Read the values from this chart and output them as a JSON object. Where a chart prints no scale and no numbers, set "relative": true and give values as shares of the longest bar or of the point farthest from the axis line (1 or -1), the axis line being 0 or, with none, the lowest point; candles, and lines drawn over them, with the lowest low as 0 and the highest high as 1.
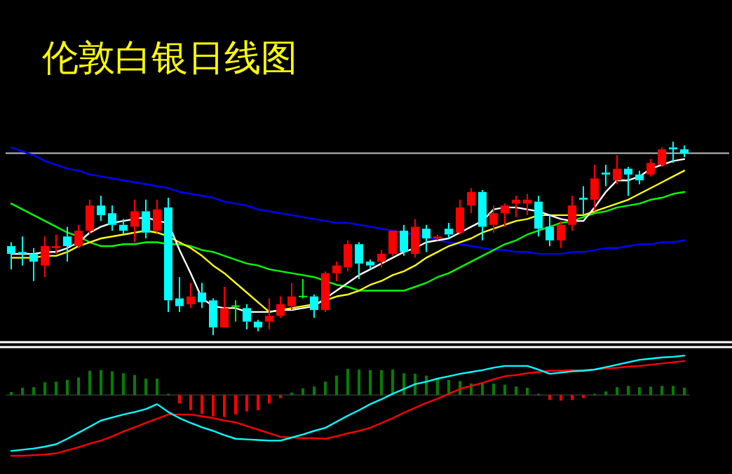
{
  "chart_data": [
    {
      "type": "candlestick",
      "title": "伦敦白银日线图",
      "relative": true,
      "categories": [
        null,
        null,
        null,
        null,
        null,
        null,
        null,
        null,
        null,
        null,
        null,
        null,
        null,
        null,
        null,
        null,
        null,
        null,
        null,
        null,
        null,
        null,
        null,
        null,
        null,
        null,
        null,
        null,
        null,
        null,
        null,
        null,
        null,
        null,
        null,
        null,
        null,
        null,
        null,
        null,
        null,
        null,
        null,
        null,
        null,
        null,
        null,
        null,
        null,
        null,
        null,
        null,
        null,
        null,
        null,
        null,
        null,
        null,
        null,
        null,
        null
      ],
      "ohlc": [
        [
          0.46,
          0.48,
          0.34,
          0.42
        ],
        [
          0.43,
          0.51,
          0.36,
          0.42
        ],
        [
          0.42,
          0.45,
          0.28,
          0.38
        ],
        [
          0.36,
          0.51,
          0.3,
          0.46
        ],
        [
          0.45,
          0.52,
          0.42,
          0.46
        ],
        [
          0.51,
          0.56,
          0.38,
          0.46
        ],
        [
          0.46,
          0.57,
          0.45,
          0.54
        ],
        [
          0.54,
          0.7,
          0.52,
          0.67
        ],
        [
          0.67,
          0.72,
          0.59,
          0.62
        ],
        [
          0.63,
          0.67,
          0.54,
          0.57
        ],
        [
          0.57,
          0.6,
          0.52,
          0.54
        ],
        [
          0.56,
          0.7,
          0.48,
          0.64
        ],
        [
          0.64,
          0.7,
          0.5,
          0.53
        ],
        [
          0.54,
          0.7,
          0.53,
          0.65
        ],
        [
          0.66,
          0.71,
          0.12,
          0.18
        ],
        [
          0.19,
          0.3,
          0.12,
          0.15
        ],
        [
          0.16,
          0.27,
          0.14,
          0.2
        ],
        [
          0.22,
          0.27,
          0.14,
          0.17
        ],
        [
          0.18,
          0.19,
          0,
          0.04
        ],
        [
          0.04,
          0.25,
          0.04,
          0.14
        ],
        [
          0.15,
          0.18,
          0.07,
          0.15
        ],
        [
          0.14,
          0.16,
          0.03,
          0.07
        ],
        [
          0.07,
          0.08,
          0.02,
          0.04
        ],
        [
          0.07,
          0.19,
          0.03,
          0.1
        ],
        [
          0.1,
          0.2,
          0.09,
          0.16
        ],
        [
          0.15,
          0.27,
          0.13,
          0.2
        ],
        [
          0.2,
          0.29,
          0.19,
          0.2
        ],
        [
          0.2,
          0.21,
          0.09,
          0.13
        ],
        [
          0.13,
          0.33,
          0.12,
          0.32
        ],
        [
          0.32,
          0.38,
          0.28,
          0.36
        ],
        [
          0.35,
          0.49,
          0.33,
          0.47
        ],
        [
          0.47,
          0.48,
          0.29,
          0.37
        ],
        [
          0.38,
          0.39,
          0.34,
          0.36
        ],
        [
          0.38,
          0.44,
          0.35,
          0.42
        ],
        [
          0.42,
          0.54,
          0.41,
          0.54
        ],
        [
          0.54,
          0.57,
          0.41,
          0.43
        ],
        [
          0.42,
          0.6,
          0.4,
          0.56
        ],
        [
          0.55,
          0.57,
          0.43,
          0.5
        ],
        [
          0.5,
          0.52,
          0.49,
          0.51
        ],
        [
          0.55,
          0.58,
          0.5,
          0.52
        ],
        [
          0.53,
          0.7,
          0.52,
          0.66
        ],
        [
          0.67,
          0.76,
          0.63,
          0.74
        ],
        [
          0.74,
          0.75,
          0.49,
          0.56
        ],
        [
          0.57,
          0.67,
          0.53,
          0.63
        ],
        [
          0.63,
          0.68,
          0.56,
          0.67
        ],
        [
          0.68,
          0.72,
          0.61,
          0.7
        ],
        [
          0.68,
          0.73,
          0.62,
          0.7
        ],
        [
          0.69,
          0.72,
          0.51,
          0.55
        ],
        [
          0.56,
          0.62,
          0.46,
          0.49
        ],
        [
          0.49,
          0.59,
          0.45,
          0.57
        ],
        [
          0.57,
          0.72,
          0.54,
          0.67
        ],
        [
          0.71,
          0.77,
          0.62,
          0.7
        ],
        [
          0.7,
          0.88,
          0.64,
          0.81
        ],
        [
          0.84,
          0.88,
          0.77,
          0.83
        ],
        [
          0.8,
          0.93,
          0.78,
          0.86
        ],
        [
          0.86,
          0.87,
          0.72,
          0.83
        ],
        [
          0.83,
          0.85,
          0.78,
          0.8
        ],
        [
          0.83,
          0.91,
          0.82,
          0.89
        ],
        [
          0.88,
          0.97,
          0.87,
          0.96
        ],
        [
          0.97,
          1,
          0.89,
          0.96
        ],
        [
          0.96,
          0.98,
          0.92,
          0.94
        ]
      ],
      "colors": [
        "#00ffff",
        "#00ffff",
        "#00ffff",
        "#ff0000",
        "#ff0000",
        "#00ffff",
        "#ff0000",
        "#ff0000",
        "#00ffff",
        "#00ffff",
        "#00ffff",
        "#ff0000",
        "#00ffff",
        "#ff0000",
        "#00ffff",
        "#00ffff",
        "#ff0000",
        "#00ffff",
        "#00ffff",
        "#ff0000",
        "#00ff00",
        "#00ffff",
        "#00ffff",
        "#ff0000",
        "#ff0000",
        "#ff0000",
        "#00ff00",
        "#00ffff",
        "#ff0000",
        "#ff0000",
        "#ff0000",
        "#00ffff",
        "#00ffff",
        "#ff0000",
        "#ff0000",
        "#00ffff",
        "#ff0000",
        "#00ffff",
        "#ff0000",
        "#00ffff",
        "#ff0000",
        "#ff0000",
        "#00ffff",
        "#ff0000",
        "#ff0000",
        "#ff0000",
        "#ff0000",
        "#00ffff",
        "#00ffff",
        "#ff0000",
        "#ff0000",
        "#00ffff",
        "#ff0000",
        "#00ffff",
        "#ff0000",
        "#00ffff",
        "#00ffff",
        "#ff0000",
        "#ff0000",
        "#00ffff",
        "#00ffff"
      ],
      "series": [
        {
          "type": "line",
          "color": "#0000ff",
          "values": [
            0.97,
            0.95,
            0.93,
            0.9,
            0.88,
            0.86,
            0.85,
            0.83,
            0.82,
            0.81,
            0.8,
            0.79,
            0.78,
            0.77,
            0.76,
            0.74,
            0.73,
            0.72,
            0.71,
            0.69,
            0.68,
            0.67,
            0.65,
            0.64,
            0.63,
            0.62,
            0.61,
            0.6,
            0.59,
            0.58,
            0.58,
            0.57,
            0.56,
            0.55,
            0.54,
            0.53,
            0.52,
            0.51,
            0.49,
            0.48,
            0.47,
            0.46,
            0.45,
            0.44,
            0.44,
            0.43,
            0.43,
            0.42,
            0.42,
            0.42,
            0.43,
            0.43,
            0.44,
            0.45,
            0.45,
            0.46,
            0.47,
            0.47,
            0.48,
            0.48,
            0.49
          ]
        },
        {
          "type": "line",
          "color": "#00ff00",
          "values": [
            0.68,
            0.65,
            0.62,
            0.59,
            0.56,
            0.53,
            0.51,
            0.48,
            0.46,
            0.46,
            0.47,
            0.47,
            0.48,
            0.48,
            0.47,
            0.47,
            0.46,
            0.44,
            0.43,
            0.41,
            0.39,
            0.37,
            0.36,
            0.34,
            0.33,
            0.32,
            0.31,
            0.3,
            0.28,
            0.26,
            0.25,
            0.23,
            0.23,
            0.23,
            0.23,
            0.23,
            0.25,
            0.27,
            0.3,
            0.32,
            0.35,
            0.38,
            0.41,
            0.44,
            0.47,
            0.49,
            0.52,
            0.54,
            0.56,
            0.58,
            0.59,
            0.61,
            0.63,
            0.64,
            0.66,
            0.67,
            0.68,
            0.7,
            0.71,
            0.73,
            0.74
          ]
        },
        {
          "type": "line",
          "color": "#ffff00",
          "values": [
            0.4,
            0.4,
            0.4,
            0.41,
            0.41,
            0.43,
            0.46,
            0.48,
            0.5,
            0.51,
            0.52,
            0.53,
            0.54,
            0.53,
            0.51,
            0.48,
            0.45,
            0.41,
            0.36,
            0.32,
            0.27,
            0.22,
            0.17,
            0.12,
            0.13,
            0.14,
            0.15,
            0.16,
            0.18,
            0.2,
            0.21,
            0.23,
            0.26,
            0.28,
            0.31,
            0.33,
            0.36,
            0.4,
            0.43,
            0.46,
            0.48,
            0.5,
            0.53,
            0.55,
            0.57,
            0.59,
            0.6,
            0.62,
            0.62,
            0.62,
            0.62,
            0.62,
            0.64,
            0.66,
            0.68,
            0.7,
            0.73,
            0.76,
            0.79,
            0.82,
            0.85
          ]
        },
        {
          "type": "line",
          "color": "#ffffff",
          "values": [
            0.42,
            0.42,
            0.42,
            0.43,
            0.43,
            0.45,
            0.48,
            0.53,
            0.56,
            0.58,
            0.59,
            0.6,
            0.61,
            0.59,
            0.58,
            0.44,
            0.32,
            0.19,
            0.15,
            0.14,
            0.14,
            0.12,
            0.12,
            0.12,
            0.13,
            0.13,
            0.14,
            0.15,
            0.19,
            0.23,
            0.27,
            0.31,
            0.34,
            0.37,
            0.4,
            0.43,
            0.45,
            0.48,
            0.49,
            0.5,
            0.53,
            0.56,
            0.59,
            0.65,
            0.66,
            0.66,
            0.65,
            0.64,
            0.62,
            0.6,
            0.59,
            0.59,
            0.66,
            0.74,
            0.8,
            0.8,
            0.82,
            0.86,
            0.88,
            0.9,
            0.91
          ]
        }
      ],
      "ref_lines": [
        {
          "axis": "y",
          "value": 0.94,
          "color": "#c0c0c0"
        }
      ]
    },
    {
      "type": "line",
      "relative": true,
      "categories": [
        null,
        null,
        null,
        null,
        null,
        null,
        null,
        null,
        null,
        null,
        null,
        null,
        null,
        null,
        null,
        null,
        null,
        null,
        null,
        null,
        null,
        null,
        null,
        null,
        null,
        null,
        null,
        null,
        null,
        null,
        null,
        null,
        null,
        null,
        null,
        null,
        null,
        null,
        null,
        null,
        null,
        null,
        null,
        null,
        null,
        null,
        null,
        null,
        null,
        null,
        null,
        null,
        null,
        null,
        null,
        null,
        null,
        null,
        null,
        null,
        null
      ],
      "series": [
        {
          "type": "bar",
          "colors": [
            "#008000",
            "#008000",
            "#008000",
            "#008000",
            "#008000",
            "#008000",
            "#008000",
            "#008000",
            "#008000",
            "#008000",
            "#008000",
            "#008000",
            "#008000",
            "#008000",
            "#008000",
            "#ff0000",
            "#ff0000",
            "#ff0000",
            "#ff0000",
            "#ff0000",
            "#ff0000",
            "#ff0000",
            "#ff0000",
            "#ff0000",
            "#ff0000",
            "#008000",
            "#008000",
            "#008000",
            "#008000",
            "#008000",
            "#008000",
            "#008000",
            "#008000",
            "#008000",
            "#008000",
            "#008000",
            "#008000",
            "#008000",
            "#008000",
            "#008000",
            "#008000",
            "#008000",
            "#008000",
            "#008000",
            "#008000",
            "#008000",
            "#008000",
            "#008000",
            "#ff0000",
            "#ff0000",
            "#ff0000",
            "#ff0000",
            "#008000",
            "#008000",
            "#008000",
            "#008000",
            "#008000",
            "#008000",
            "#008000",
            "#008000",
            "#008000"
          ],
          "values": [
            0.05,
            0.12,
            0.13,
            0.21,
            0.22,
            0.25,
            0.29,
            0.4,
            0.41,
            0.39,
            0.36,
            0.33,
            0.27,
            0.27,
            0.02,
            -0.14,
            -0.25,
            -0.31,
            -0.35,
            -0.36,
            -0.32,
            -0.27,
            -0.25,
            -0.14,
            -0.05,
            0.04,
            0.11,
            0.14,
            0.22,
            0.32,
            0.43,
            0.42,
            0.41,
            0.41,
            0.42,
            0.36,
            0.35,
            0.32,
            0.27,
            0.25,
            0.23,
            0.19,
            0.21,
            0.19,
            0.17,
            0.14,
            0.12,
            0.02,
            -0.08,
            -0.09,
            -0.08,
            -0.05,
            0.02,
            0.06,
            0.13,
            0.15,
            0.13,
            0.14,
            0.15,
            0.15,
            0.12
          ]
        },
        {
          "type": "line",
          "color": "#ff0000",
          "values": [
            -1,
            -1,
            -0.99,
            -0.98,
            -0.96,
            -0.91,
            -0.86,
            -0.8,
            -0.75,
            -0.68,
            -0.6,
            -0.53,
            -0.46,
            -0.39,
            -0.32,
            -0.32,
            -0.32,
            -0.35,
            -0.38,
            -0.42,
            -0.45,
            -0.51,
            -0.57,
            -0.63,
            -0.69,
            -0.7,
            -0.71,
            -0.71,
            -0.72,
            -0.68,
            -0.63,
            -0.59,
            -0.54,
            -0.46,
            -0.38,
            -0.29,
            -0.21,
            -0.13,
            -0.06,
            0.02,
            0.1,
            0.15,
            0.2,
            0.26,
            0.31,
            0.33,
            0.36,
            0.38,
            0.4,
            0.4,
            0.41,
            0.41,
            0.42,
            0.44,
            0.45,
            0.47,
            0.48,
            0.5,
            0.52,
            0.54,
            0.56
          ]
        },
        {
          "type": "line",
          "color": "#00ffff",
          "values": [
            -0.92,
            -0.9,
            -0.88,
            -0.85,
            -0.81,
            -0.72,
            -0.62,
            -0.52,
            -0.42,
            -0.37,
            -0.32,
            -0.28,
            -0.23,
            -0.15,
            -0.28,
            -0.38,
            -0.46,
            -0.53,
            -0.59,
            -0.66,
            -0.72,
            -0.73,
            -0.74,
            -0.75,
            -0.75,
            -0.7,
            -0.65,
            -0.59,
            -0.54,
            -0.44,
            -0.34,
            -0.25,
            -0.15,
            -0.07,
            0.02,
            0.1,
            0.18,
            0.22,
            0.27,
            0.31,
            0.35,
            0.38,
            0.41,
            0.45,
            0.48,
            0.48,
            0.48,
            0.42,
            0.35,
            0.37,
            0.39,
            0.4,
            0.42,
            0.46,
            0.5,
            0.54,
            0.58,
            0.6,
            0.62,
            0.63,
            0.65
          ]
        }
      ]
    }
  ]
}
